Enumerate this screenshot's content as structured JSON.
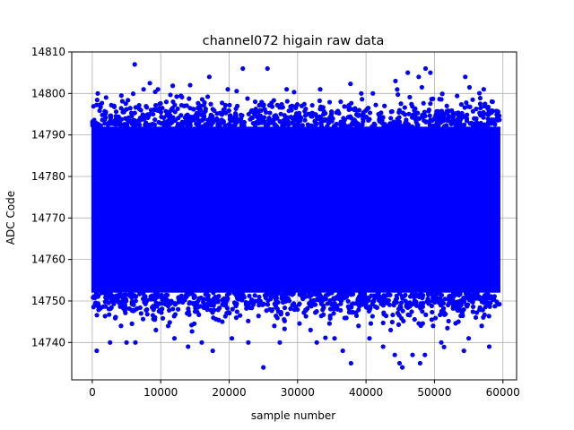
{
  "chart_data": {
    "type": "scatter",
    "title": "channel072 higain raw data",
    "xlabel": "sample number",
    "ylabel": "ADC Code",
    "xlim": [
      -3000,
      62000
    ],
    "ylim": [
      14731,
      14810
    ],
    "xticks": [
      0,
      10000,
      20000,
      30000,
      40000,
      50000,
      60000
    ],
    "yticks": [
      14740,
      14750,
      14760,
      14770,
      14780,
      14790,
      14800,
      14810
    ],
    "grid": true,
    "series": [
      {
        "name": "",
        "color": "#0000ff",
        "marker": "circle",
        "n_samples": 59500,
        "x_range": [
          0,
          59500
        ],
        "dense_band": [
          14752,
          14792
        ],
        "points": [
          [
            800,
            14800
          ],
          [
            6200,
            14807
          ],
          [
            7500,
            14801
          ],
          [
            9600,
            14801
          ],
          [
            14300,
            14802
          ],
          [
            17100,
            14804
          ],
          [
            19800,
            14801
          ],
          [
            22000,
            14806
          ],
          [
            25600,
            14806
          ],
          [
            28400,
            14801
          ],
          [
            33300,
            14801
          ],
          [
            39300,
            14800
          ],
          [
            41000,
            14800
          ],
          [
            44300,
            14803
          ],
          [
            46100,
            14805
          ],
          [
            47700,
            14804
          ],
          [
            48700,
            14806
          ],
          [
            49400,
            14805
          ],
          [
            54500,
            14804
          ],
          [
            57200,
            14801
          ],
          [
            3200,
            14797
          ],
          [
            11800,
            14798
          ],
          [
            15800,
            14797
          ],
          [
            23800,
            14798
          ],
          [
            30600,
            14797
          ],
          [
            36300,
            14798
          ],
          [
            42700,
            14797
          ],
          [
            51800,
            14797
          ],
          [
            58500,
            14798
          ],
          [
            650,
            14738
          ],
          [
            2600,
            14740
          ],
          [
            5000,
            14740
          ],
          [
            6300,
            14740
          ],
          [
            12000,
            14741
          ],
          [
            14000,
            14739
          ],
          [
            16000,
            14740
          ],
          [
            17600,
            14738
          ],
          [
            20400,
            14741
          ],
          [
            22800,
            14740
          ],
          [
            25000,
            14734
          ],
          [
            27400,
            14740
          ],
          [
            32800,
            14740
          ],
          [
            35400,
            14741
          ],
          [
            36600,
            14738
          ],
          [
            37800,
            14735
          ],
          [
            40500,
            14741
          ],
          [
            42500,
            14739
          ],
          [
            44200,
            14737
          ],
          [
            44900,
            14735
          ],
          [
            45300,
            14734
          ],
          [
            46800,
            14737
          ],
          [
            47900,
            14735
          ],
          [
            48600,
            14737
          ],
          [
            51000,
            14740
          ],
          [
            54300,
            14738
          ],
          [
            55000,
            14741
          ],
          [
            58000,
            14739
          ],
          [
            4200,
            14744
          ],
          [
            9300,
            14743
          ],
          [
            19000,
            14745
          ],
          [
            26600,
            14744
          ],
          [
            31900,
            14743
          ],
          [
            38900,
            14744
          ],
          [
            43600,
            14743
          ],
          [
            49800,
            14744
          ],
          [
            53500,
            14745
          ],
          [
            56900,
            14744
          ]
        ]
      }
    ]
  }
}
